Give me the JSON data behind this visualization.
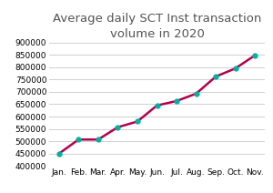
{
  "months": [
    "Jan.",
    "Feb.",
    "Mar.",
    "Apr.",
    "May.",
    "Jun.",
    "Jul.",
    "Aug.",
    "Sep.",
    "Oct.",
    "Nov."
  ],
  "values": [
    450000,
    507000,
    507000,
    557000,
    580000,
    645000,
    663000,
    693000,
    762000,
    795000,
    848000
  ],
  "line_color": "#b5004b",
  "marker_color": "#00b0a0",
  "marker_style": "o",
  "marker_size": 3.5,
  "line_width": 1.8,
  "title": "Average daily SCT Inst transaction\nvolume in 2020",
  "title_fontsize": 9.5,
  "ylim": [
    400000,
    900000
  ],
  "yticks": [
    400000,
    450000,
    500000,
    550000,
    600000,
    650000,
    700000,
    750000,
    800000,
    850000,
    900000
  ],
  "grid_color": "#d0d0d0",
  "background_color": "#ffffff",
  "tick_label_fontsize": 6.5,
  "title_color": "#555555"
}
